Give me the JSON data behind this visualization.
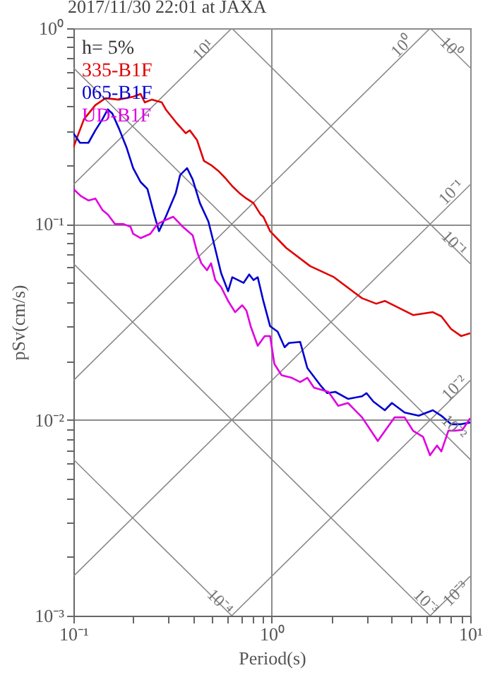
{
  "chart_data": {
    "type": "line",
    "title": "2017/11/30 22:01 at JAXA",
    "xlabel": "Period(s)",
    "ylabel": "pSv(cm/s)",
    "log": "xy",
    "grid": true,
    "legend": "top left",
    "line_style": "solid",
    "marker": "none",
    "xlim": [
      0.1,
      10
    ],
    "ylim": [
      0.001,
      1
    ],
    "xticks": [
      {
        "value": 0.1,
        "label": "10⁻¹"
      },
      {
        "value": 0.2,
        "label": null
      },
      {
        "value": 0.3,
        "label": null
      },
      {
        "value": 0.4,
        "label": null
      },
      {
        "value": 0.5,
        "label": null
      },
      {
        "value": 0.6,
        "label": null
      },
      {
        "value": 0.7,
        "label": null
      },
      {
        "value": 0.8,
        "label": null
      },
      {
        "value": 0.9,
        "label": null
      },
      {
        "value": 1,
        "label": "10⁰"
      },
      {
        "value": 2,
        "label": null
      },
      {
        "value": 3,
        "label": null
      },
      {
        "value": 4,
        "label": null
      },
      {
        "value": 5,
        "label": null
      },
      {
        "value": 6,
        "label": null
      },
      {
        "value": 7,
        "label": null
      },
      {
        "value": 8,
        "label": null
      },
      {
        "value": 9,
        "label": null
      },
      {
        "value": 10,
        "label": "10¹"
      }
    ],
    "yticks": [
      {
        "value": 0.001,
        "label": "10⁻³"
      },
      {
        "value": 0.002,
        "label": null
      },
      {
        "value": 0.003,
        "label": null
      },
      {
        "value": 0.004,
        "label": null
      },
      {
        "value": 0.005,
        "label": null
      },
      {
        "value": 0.006,
        "label": null
      },
      {
        "value": 0.007,
        "label": null
      },
      {
        "value": 0.008,
        "label": null
      },
      {
        "value": 0.009,
        "label": null
      },
      {
        "value": 0.01,
        "label": "10⁻²"
      },
      {
        "value": 0.02,
        "label": null
      },
      {
        "value": 0.03,
        "label": null
      },
      {
        "value": 0.04,
        "label": null
      },
      {
        "value": 0.05,
        "label": null
      },
      {
        "value": 0.06,
        "label": null
      },
      {
        "value": 0.07,
        "label": null
      },
      {
        "value": 0.08,
        "label": null
      },
      {
        "value": 0.09,
        "label": null
      },
      {
        "value": 0.1,
        "label": "10⁻¹"
      },
      {
        "value": 0.2,
        "label": null
      },
      {
        "value": 0.3,
        "label": null
      },
      {
        "value": 0.4,
        "label": null
      },
      {
        "value": 0.5,
        "label": null
      },
      {
        "value": 0.6,
        "label": null
      },
      {
        "value": 0.7,
        "label": null
      },
      {
        "value": 0.8,
        "label": null
      },
      {
        "value": 0.9,
        "label": null
      },
      {
        "value": 1,
        "label": "10⁰"
      }
    ],
    "annotations": [
      "h= 5%",
      {
        "text": "10¹",
        "x": 0.45,
        "y": 0.78
      },
      {
        "text": "10⁰",
        "x": 4.5,
        "y": 0.81
      },
      {
        "text": "10⁰",
        "x": 8.0,
        "y": 0.8
      },
      {
        "text": "10⁻¹",
        "x": 8.0,
        "y": 0.146
      },
      {
        "text": "10⁻¹",
        "x": 8.3,
        "y": 0.08
      },
      {
        "text": "10⁻²",
        "x": 8.3,
        "y": 0.0146
      },
      {
        "text": "10⁻²",
        "x": 8.3,
        "y": 0.0092
      },
      {
        "text": "10⁻³",
        "x": 6.0,
        "y": 0.00118
      },
      {
        "text": "10⁻³",
        "x": 8.4,
        "y": 0.0013
      },
      {
        "text": "10⁻⁴",
        "x": 0.55,
        "y": 0.00118
      }
    ],
    "series": [
      {
        "type": "line",
        "color": "#888888",
        "x": [
          0.1,
          0.628
        ],
        "values": [
          0.159,
          1
        ]
      },
      {
        "type": "line",
        "color": "#888888",
        "x": [
          0.1,
          6.28
        ],
        "values": [
          0.0159,
          1
        ]
      },
      {
        "type": "line",
        "color": "#888888",
        "x": [
          0.1,
          10
        ],
        "values": [
          0.00159,
          0.159
        ]
      },
      {
        "type": "line",
        "color": "#888888",
        "x": [
          0.628,
          10
        ],
        "values": [
          0.001,
          0.0159
        ]
      },
      {
        "type": "line",
        "color": "#888888",
        "x": [
          6.28,
          10
        ],
        "values": [
          0.001,
          0.00159
        ]
      },
      {
        "type": "line",
        "color": "#888888",
        "x": [
          6.28,
          10
        ],
        "values": [
          1,
          0.628
        ]
      },
      {
        "type": "line",
        "color": "#888888",
        "x": [
          0.628,
          10
        ],
        "values": [
          1,
          0.0628
        ]
      },
      {
        "type": "line",
        "color": "#888888",
        "x": [
          0.1,
          10
        ],
        "values": [
          0.628,
          0.00628
        ]
      },
      {
        "type": "line",
        "color": "#888888",
        "x": [
          0.1,
          6.28
        ],
        "values": [
          0.0628,
          0.001
        ]
      },
      {
        "type": "line",
        "color": "#888888",
        "x": [
          0.1,
          0.628
        ],
        "values": [
          0.00628,
          0.001
        ]
      },
      {
        "name": "335-B1F",
        "color": "#e00000",
        "x": [
          0.1,
          0.113,
          0.129,
          0.145,
          0.17,
          0.2,
          0.218,
          0.229,
          0.248,
          0.279,
          0.292,
          0.328,
          0.368,
          0.386,
          0.42,
          0.455,
          0.494,
          0.537,
          0.582,
          0.632,
          0.686,
          0.745,
          0.808,
          0.877,
          0.906,
          0.98,
          1.18,
          1.56,
          2.06,
          2.85,
          3.36,
          3.71,
          4.67,
          5.15,
          6.48,
          7.15,
          8.01,
          8.99,
          10
        ],
        "values": [
          0.247,
          0.343,
          0.405,
          0.439,
          0.432,
          0.447,
          0.462,
          0.418,
          0.432,
          0.418,
          0.385,
          0.332,
          0.291,
          0.301,
          0.268,
          0.21,
          0.2,
          0.187,
          0.172,
          0.156,
          0.144,
          0.135,
          0.128,
          0.112,
          0.109,
          0.092,
          0.0756,
          0.061,
          0.0535,
          0.0418,
          0.0392,
          0.0405,
          0.0361,
          0.0343,
          0.0355,
          0.0338,
          0.0291,
          0.0268,
          0.0277
        ]
      },
      {
        "name": "065-B1F",
        "color": "#0000d0",
        "x": [
          0.1,
          0.108,
          0.119,
          0.129,
          0.14,
          0.149,
          0.157,
          0.17,
          0.185,
          0.2,
          0.218,
          0.236,
          0.257,
          0.27,
          0.292,
          0.328,
          0.345,
          0.374,
          0.399,
          0.434,
          0.479,
          0.519,
          0.555,
          0.602,
          0.632,
          0.721,
          0.769,
          0.808,
          0.849,
          0.906,
          0.98,
          1.07,
          1.16,
          1.22,
          1.39,
          1.51,
          1.75,
          1.9,
          2.09,
          2.42,
          2.85,
          3.0,
          3.25,
          3.71,
          4.03,
          4.67,
          5.5,
          6.48,
          7.15,
          8.01,
          8.99,
          10
        ],
        "values": [
          0.291,
          0.26,
          0.26,
          0.301,
          0.343,
          0.385,
          0.367,
          0.306,
          0.247,
          0.193,
          0.164,
          0.151,
          0.109,
          0.092,
          0.109,
          0.144,
          0.178,
          0.193,
          0.169,
          0.128,
          0.103,
          0.0744,
          0.0562,
          0.0454,
          0.0535,
          0.0501,
          0.0553,
          0.0518,
          0.0535,
          0.0405,
          0.0301,
          0.0282,
          0.0235,
          0.0247,
          0.025,
          0.0184,
          0.0151,
          0.0137,
          0.0139,
          0.0128,
          0.0132,
          0.0137,
          0.0124,
          0.0112,
          0.0122,
          0.0109,
          0.0105,
          0.0112,
          0.0105,
          0.0095,
          0.0095,
          0.0097
        ]
      },
      {
        "name": "UD-B1F",
        "color": "#e000e0",
        "x": [
          0.1,
          0.109,
          0.119,
          0.129,
          0.14,
          0.149,
          0.162,
          0.179,
          0.194,
          0.2,
          0.218,
          0.244,
          0.265,
          0.292,
          0.318,
          0.356,
          0.399,
          0.42,
          0.441,
          0.471,
          0.494,
          0.519,
          0.555,
          0.602,
          0.653,
          0.709,
          0.745,
          0.782,
          0.849,
          0.921,
          0.98,
          1.03,
          1.12,
          1.26,
          1.39,
          1.51,
          1.63,
          1.93,
          2.16,
          2.42,
          2.85,
          3.42,
          4.16,
          4.67,
          5.15,
          5.78,
          6.27,
          6.8,
          7.15,
          7.76,
          8.41,
          9.14,
          10
        ],
        "values": [
          0.151,
          0.139,
          0.132,
          0.135,
          0.118,
          0.112,
          0.1,
          0.1,
          0.0968,
          0.0891,
          0.0848,
          0.0891,
          0.1,
          0.105,
          0.109,
          0.0968,
          0.0877,
          0.072,
          0.0631,
          0.0581,
          0.0631,
          0.0518,
          0.0477,
          0.0405,
          0.0355,
          0.0385,
          0.0361,
          0.0301,
          0.0239,
          0.0268,
          0.0268,
          0.0193,
          0.0169,
          0.0164,
          0.0156,
          0.0164,
          0.0146,
          0.0139,
          0.0118,
          0.0122,
          0.0103,
          0.0078,
          0.0103,
          0.0103,
          0.0088,
          0.0082,
          0.0066,
          0.0074,
          0.0069,
          0.0088,
          0.0088,
          0.0089,
          0.0102
        ]
      }
    ]
  }
}
